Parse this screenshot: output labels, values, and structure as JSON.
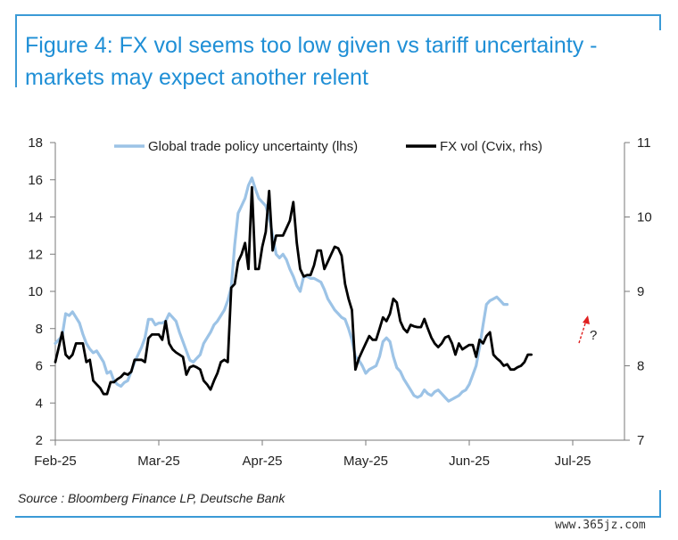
{
  "title": "Figure 4: FX vol seems too low given vs tariff uncertainty - markets may expect another relent",
  "source": "Source : Bloomberg Finance LP, Deutsche Bank",
  "watermark": "www.365jz.com",
  "annotation": "?",
  "colors": {
    "lhs_series": "#9cc3e6",
    "rhs_series": "#000000",
    "title": "#1f8fd6",
    "arrow": "#e02020",
    "frame": "#3b9ad6"
  },
  "chart_data": {
    "type": "line",
    "legend_position": "top",
    "grid": false,
    "x_ticks": [
      "Feb-25",
      "Mar-25",
      "Apr-25",
      "May-25",
      "Jun-25",
      "Jul-25"
    ],
    "x_range": [
      0,
      165
    ],
    "y_left": {
      "range": [
        2,
        18
      ],
      "ticks": [
        "18",
        "16",
        "14",
        "12",
        "10",
        "8",
        "6",
        "4",
        "2"
      ]
    },
    "y_right": {
      "range": [
        7,
        11
      ],
      "ticks": [
        "11",
        "10",
        "9",
        "8",
        "7"
      ]
    },
    "series": [
      {
        "name": "Global trade policy uncertainty (lhs)",
        "axis": "left",
        "points": [
          [
            0,
            7.2
          ],
          [
            2,
            7.6
          ],
          [
            3,
            8.8
          ],
          [
            4,
            8.7
          ],
          [
            5,
            8.9
          ],
          [
            6,
            8.6
          ],
          [
            7,
            8.3
          ],
          [
            8,
            7.7
          ],
          [
            9,
            7.2
          ],
          [
            10,
            6.9
          ],
          [
            11,
            6.7
          ],
          [
            12,
            6.8
          ],
          [
            13,
            6.5
          ],
          [
            14,
            6.2
          ],
          [
            15,
            5.6
          ],
          [
            16,
            5.7
          ],
          [
            17,
            5.2
          ],
          [
            18,
            5.0
          ],
          [
            19,
            4.9
          ],
          [
            20,
            5.1
          ],
          [
            21,
            5.2
          ],
          [
            22,
            5.7
          ],
          [
            23,
            6.2
          ],
          [
            24,
            6.6
          ],
          [
            25,
            7.0
          ],
          [
            26,
            7.5
          ],
          [
            27,
            8.5
          ],
          [
            28,
            8.5
          ],
          [
            29,
            8.2
          ],
          [
            30,
            8.3
          ],
          [
            31,
            8.3
          ],
          [
            32,
            8.4
          ],
          [
            33,
            8.8
          ],
          [
            34,
            8.6
          ],
          [
            35,
            8.4
          ],
          [
            36,
            7.8
          ],
          [
            37,
            7.3
          ],
          [
            38,
            6.8
          ],
          [
            39,
            6.3
          ],
          [
            40,
            6.2
          ],
          [
            41,
            6.4
          ],
          [
            42,
            6.6
          ],
          [
            43,
            7.2
          ],
          [
            44,
            7.5
          ],
          [
            45,
            7.8
          ],
          [
            46,
            8.2
          ],
          [
            47,
            8.4
          ],
          [
            48,
            8.7
          ],
          [
            49,
            9.0
          ],
          [
            50,
            9.5
          ],
          [
            51,
            10.2
          ],
          [
            52,
            12.5
          ],
          [
            53,
            14.2
          ],
          [
            54,
            14.6
          ],
          [
            55,
            15.0
          ],
          [
            56,
            15.7
          ],
          [
            57,
            16.1
          ],
          [
            58,
            15.5
          ],
          [
            59,
            15.0
          ],
          [
            60,
            14.8
          ],
          [
            61,
            14.6
          ],
          [
            62,
            14.0
          ],
          [
            63,
            13.0
          ],
          [
            64,
            12.0
          ],
          [
            65,
            11.8
          ],
          [
            66,
            12.0
          ],
          [
            67,
            11.7
          ],
          [
            68,
            11.2
          ],
          [
            69,
            10.8
          ],
          [
            70,
            10.3
          ],
          [
            71,
            10.0
          ],
          [
            72,
            10.8
          ],
          [
            73,
            10.8
          ],
          [
            74,
            10.7
          ],
          [
            75,
            10.7
          ],
          [
            76,
            10.6
          ],
          [
            77,
            10.5
          ],
          [
            78,
            10.1
          ],
          [
            79,
            9.6
          ],
          [
            80,
            9.3
          ],
          [
            81,
            9.0
          ],
          [
            82,
            8.8
          ],
          [
            83,
            8.6
          ],
          [
            84,
            8.5
          ],
          [
            85,
            8.0
          ],
          [
            86,
            7.4
          ],
          [
            87,
            6.5
          ],
          [
            88,
            6.3
          ],
          [
            89,
            6.0
          ],
          [
            90,
            5.6
          ],
          [
            91,
            5.8
          ],
          [
            92,
            5.9
          ],
          [
            93,
            6.0
          ],
          [
            94,
            6.5
          ],
          [
            95,
            7.3
          ],
          [
            96,
            7.5
          ],
          [
            97,
            7.3
          ],
          [
            98,
            6.5
          ],
          [
            99,
            5.9
          ],
          [
            100,
            5.7
          ],
          [
            101,
            5.3
          ],
          [
            102,
            5.0
          ],
          [
            103,
            4.7
          ],
          [
            104,
            4.4
          ],
          [
            105,
            4.3
          ],
          [
            106,
            4.4
          ],
          [
            107,
            4.7
          ],
          [
            108,
            4.5
          ],
          [
            109,
            4.4
          ],
          [
            110,
            4.6
          ],
          [
            111,
            4.7
          ],
          [
            112,
            4.5
          ],
          [
            113,
            4.3
          ],
          [
            114,
            4.1
          ],
          [
            115,
            4.2
          ],
          [
            116,
            4.3
          ],
          [
            117,
            4.4
          ],
          [
            118,
            4.6
          ],
          [
            119,
            4.7
          ],
          [
            120,
            5.0
          ],
          [
            121,
            5.5
          ],
          [
            122,
            6.0
          ],
          [
            123,
            7.0
          ],
          [
            124,
            8.2
          ],
          [
            125,
            9.3
          ],
          [
            126,
            9.5
          ],
          [
            127,
            9.6
          ],
          [
            128,
            9.7
          ],
          [
            129,
            9.5
          ],
          [
            130,
            9.3
          ],
          [
            131,
            9.3
          ]
        ]
      },
      {
        "name": "FX vol (Cvix, rhs)",
        "axis": "right",
        "points": [
          [
            0,
            8.05
          ],
          [
            1,
            8.25
          ],
          [
            2,
            8.45
          ],
          [
            3,
            8.15
          ],
          [
            4,
            8.1
          ],
          [
            5,
            8.15
          ],
          [
            6,
            8.3
          ],
          [
            7,
            8.3
          ],
          [
            8,
            8.3
          ],
          [
            9,
            8.05
          ],
          [
            10,
            8.08
          ],
          [
            11,
            7.8
          ],
          [
            12,
            7.75
          ],
          [
            13,
            7.7
          ],
          [
            14,
            7.62
          ],
          [
            15,
            7.62
          ],
          [
            16,
            7.78
          ],
          [
            17,
            7.78
          ],
          [
            18,
            7.82
          ],
          [
            19,
            7.85
          ],
          [
            20,
            7.9
          ],
          [
            21,
            7.88
          ],
          [
            22,
            7.92
          ],
          [
            23,
            8.08
          ],
          [
            24,
            8.08
          ],
          [
            25,
            8.08
          ],
          [
            26,
            8.05
          ],
          [
            27,
            8.37
          ],
          [
            28,
            8.42
          ],
          [
            29,
            8.42
          ],
          [
            30,
            8.42
          ],
          [
            31,
            8.35
          ],
          [
            32,
            8.6
          ],
          [
            33,
            8.3
          ],
          [
            34,
            8.22
          ],
          [
            35,
            8.18
          ],
          [
            36,
            8.15
          ],
          [
            37,
            8.12
          ],
          [
            38,
            7.88
          ],
          [
            39,
            7.98
          ],
          [
            40,
            8.0
          ],
          [
            41,
            7.98
          ],
          [
            42,
            7.95
          ],
          [
            43,
            7.8
          ],
          [
            44,
            7.75
          ],
          [
            45,
            7.68
          ],
          [
            46,
            7.8
          ],
          [
            47,
            7.9
          ],
          [
            48,
            8.05
          ],
          [
            49,
            8.08
          ],
          [
            50,
            8.05
          ],
          [
            51,
            9.05
          ],
          [
            52,
            9.1
          ],
          [
            53,
            9.4
          ],
          [
            54,
            9.5
          ],
          [
            55,
            9.65
          ],
          [
            56,
            9.3
          ],
          [
            57,
            10.4
          ],
          [
            58,
            9.3
          ],
          [
            59,
            9.3
          ],
          [
            60,
            9.6
          ],
          [
            61,
            9.8
          ],
          [
            62,
            10.35
          ],
          [
            63,
            9.55
          ],
          [
            64,
            9.75
          ],
          [
            65,
            9.75
          ],
          [
            66,
            9.75
          ],
          [
            67,
            9.85
          ],
          [
            68,
            9.95
          ],
          [
            69,
            10.2
          ],
          [
            70,
            9.65
          ],
          [
            71,
            9.3
          ],
          [
            72,
            9.2
          ],
          [
            73,
            9.22
          ],
          [
            74,
            9.22
          ],
          [
            75,
            9.35
          ],
          [
            76,
            9.55
          ],
          [
            77,
            9.55
          ],
          [
            78,
            9.3
          ],
          [
            79,
            9.4
          ],
          [
            80,
            9.5
          ],
          [
            81,
            9.6
          ],
          [
            82,
            9.58
          ],
          [
            83,
            9.48
          ],
          [
            84,
            9.1
          ],
          [
            85,
            8.9
          ],
          [
            86,
            8.75
          ],
          [
            87,
            7.95
          ],
          [
            88,
            8.1
          ],
          [
            89,
            8.2
          ],
          [
            90,
            8.3
          ],
          [
            91,
            8.4
          ],
          [
            92,
            8.35
          ],
          [
            93,
            8.35
          ],
          [
            94,
            8.5
          ],
          [
            95,
            8.65
          ],
          [
            96,
            8.6
          ],
          [
            97,
            8.7
          ],
          [
            98,
            8.9
          ],
          [
            99,
            8.85
          ],
          [
            100,
            8.6
          ],
          [
            101,
            8.5
          ],
          [
            102,
            8.45
          ],
          [
            103,
            8.55
          ],
          [
            104,
            8.53
          ],
          [
            105,
            8.52
          ],
          [
            106,
            8.52
          ],
          [
            107,
            8.63
          ],
          [
            108,
            8.5
          ],
          [
            109,
            8.38
          ],
          [
            110,
            8.3
          ],
          [
            111,
            8.25
          ],
          [
            112,
            8.3
          ],
          [
            113,
            8.38
          ],
          [
            114,
            8.4
          ],
          [
            115,
            8.3
          ],
          [
            116,
            8.15
          ],
          [
            117,
            8.3
          ],
          [
            118,
            8.22
          ],
          [
            119,
            8.25
          ],
          [
            120,
            8.28
          ],
          [
            121,
            8.28
          ],
          [
            122,
            8.12
          ],
          [
            123,
            8.35
          ],
          [
            124,
            8.3
          ],
          [
            125,
            8.4
          ],
          [
            126,
            8.45
          ],
          [
            127,
            8.15
          ],
          [
            128,
            8.1
          ],
          [
            129,
            8.06
          ],
          [
            130,
            8.0
          ],
          [
            131,
            8.02
          ],
          [
            132,
            7.95
          ],
          [
            133,
            7.95
          ],
          [
            134,
            7.98
          ],
          [
            135,
            8.0
          ],
          [
            136,
            8.05
          ],
          [
            137,
            8.15
          ],
          [
            138,
            8.15
          ]
        ]
      }
    ]
  }
}
